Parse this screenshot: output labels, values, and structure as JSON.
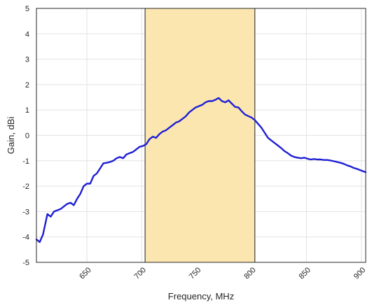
{
  "chart_data": {
    "type": "line",
    "xlabel": "Frequency, MHz",
    "ylabel": "Gain, dBi",
    "xlim": [
      604,
      904
    ],
    "ylim": [
      -5,
      5
    ],
    "x_ticks": [
      650,
      700,
      750,
      800,
      850,
      900
    ],
    "y_ticks": [
      -5,
      -4,
      -3,
      -2,
      -1,
      0,
      1,
      2,
      3,
      4,
      5
    ],
    "grid": true,
    "band": {
      "x_start": 703,
      "x_end": 803,
      "color": "#fbe6b0",
      "edge_color": "#404040"
    },
    "series": [
      {
        "color": "#1f1fd6",
        "x": [
          604,
          607,
          610,
          614,
          617,
          620,
          623,
          626,
          629,
          632,
          635,
          638,
          641,
          644,
          647,
          650,
          653,
          656,
          659,
          662,
          665,
          668,
          671,
          674,
          677,
          680,
          683,
          686,
          689,
          692,
          695,
          698,
          701,
          704,
          707,
          710,
          713,
          716,
          719,
          722,
          725,
          728,
          731,
          734,
          737,
          740,
          743,
          746,
          749,
          752,
          755,
          758,
          761,
          764,
          767,
          770,
          773,
          776,
          779,
          782,
          785,
          788,
          791,
          794,
          797,
          800,
          803,
          806,
          809,
          812,
          815,
          818,
          821,
          824,
          827,
          830,
          833,
          836,
          839,
          842,
          845,
          848,
          851,
          854,
          857,
          860,
          863,
          866,
          869,
          872,
          875,
          878,
          881,
          884,
          887,
          890,
          893,
          896,
          899,
          904
        ],
        "y": [
          -4.1,
          -4.2,
          -3.9,
          -3.1,
          -3.2,
          -3.0,
          -2.95,
          -2.9,
          -2.8,
          -2.7,
          -2.65,
          -2.75,
          -2.5,
          -2.3,
          -2.0,
          -1.9,
          -1.9,
          -1.6,
          -1.5,
          -1.3,
          -1.1,
          -1.08,
          -1.05,
          -1.0,
          -0.9,
          -0.85,
          -0.9,
          -0.75,
          -0.7,
          -0.65,
          -0.55,
          -0.45,
          -0.42,
          -0.35,
          -0.15,
          -0.05,
          -0.1,
          0.05,
          0.15,
          0.2,
          0.3,
          0.4,
          0.5,
          0.55,
          0.65,
          0.75,
          0.9,
          1.0,
          1.1,
          1.15,
          1.2,
          1.3,
          1.35,
          1.35,
          1.4,
          1.47,
          1.35,
          1.3,
          1.38,
          1.25,
          1.12,
          1.1,
          0.95,
          0.82,
          0.76,
          0.7,
          0.6,
          0.45,
          0.3,
          0.1,
          -0.1,
          -0.2,
          -0.3,
          -0.4,
          -0.5,
          -0.62,
          -0.7,
          -0.8,
          -0.85,
          -0.88,
          -0.9,
          -0.88,
          -0.92,
          -0.95,
          -0.93,
          -0.95,
          -0.95,
          -0.97,
          -0.97,
          -0.99,
          -1.02,
          -1.05,
          -1.08,
          -1.12,
          -1.18,
          -1.22,
          -1.28,
          -1.32,
          -1.37,
          -1.45
        ]
      }
    ]
  }
}
